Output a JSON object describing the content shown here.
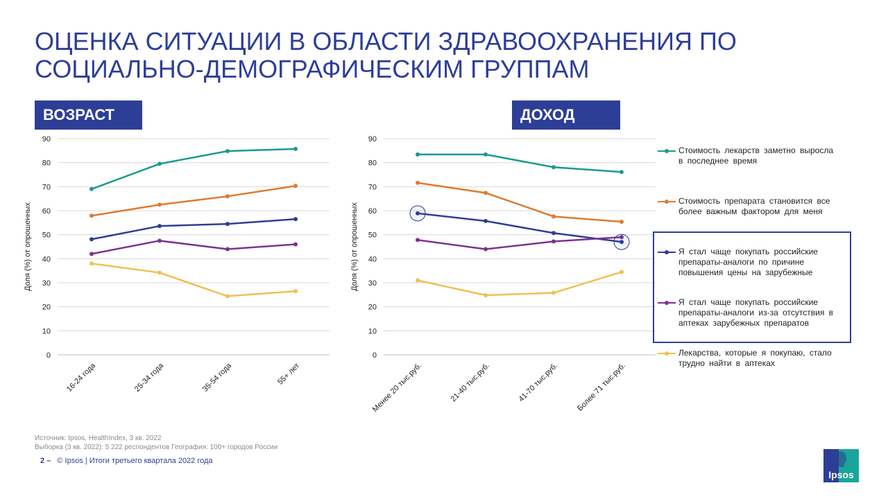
{
  "title": {
    "line1": "ОЦЕНКА СИТУАЦИИ В ОБЛАСТИ ЗДРАВООХРАНЕНИЯ ПО",
    "line2": "СОЦИАЛЬНО-ДЕМОГРАФИЧЕСКИМ ГРУППАМ"
  },
  "colors": {
    "accent": "#2d3e97",
    "teal": "#1a9a92",
    "orange": "#e07a2e",
    "navy": "#2d3e97",
    "purple": "#7b3294",
    "yellow": "#f0c050"
  },
  "legend": [
    {
      "label": "Стоимость лекарств заметно выросла в последнее время",
      "color": "#1a9a92"
    },
    {
      "label": "Стоимость препарата становится все более важным фактором для меня",
      "color": "#e07a2e"
    },
    {
      "label": "Я стал чаще покупать российские препараты-аналоги по причине повышения цены на зарубежные",
      "color": "#2d3e97"
    },
    {
      "label": "Я стал чаще покупать российские препараты-аналоги из-за отсутствия в аптеках зарубежных препаратов",
      "color": "#7b3294"
    },
    {
      "label": "Лекарства, которые я покупаю, стало трудно найти в аптеках",
      "color": "#f0c050"
    }
  ],
  "chart_data": [
    {
      "type": "line",
      "title": "ВОЗРАСТ",
      "xlabel": "",
      "ylabel": "Доля (%) от опрошенных",
      "ylim": [
        0,
        90
      ],
      "yticks": [
        0,
        10,
        20,
        30,
        40,
        50,
        60,
        70,
        80,
        90
      ],
      "grid": true,
      "categories": [
        "16-24 года",
        "25-34 года",
        "35-54 года",
        "55+ лет"
      ],
      "series": [
        {
          "color": "#1a9a92",
          "values": [
            69,
            79.5,
            84.8,
            85.7
          ]
        },
        {
          "color": "#e07a2e",
          "values": [
            57.9,
            62.5,
            66,
            70.3
          ]
        },
        {
          "color": "#2d3e97",
          "values": [
            48.1,
            53.6,
            54.5,
            56.5
          ]
        },
        {
          "color": "#7b3294",
          "values": [
            42,
            47.5,
            44,
            46
          ]
        },
        {
          "color": "#f0c050",
          "values": [
            38,
            34.2,
            24.4,
            26.5
          ]
        }
      ]
    },
    {
      "type": "line",
      "title": "ДОХОД",
      "xlabel": "",
      "ylabel": "Доля (%) от опрошенных",
      "ylim": [
        0,
        90
      ],
      "yticks": [
        0,
        10,
        20,
        30,
        40,
        50,
        60,
        70,
        80,
        90
      ],
      "grid": true,
      "legend_position": "right",
      "categories": [
        "Менее 20 тыс.руб.",
        "21-40 тыс.руб.",
        "41-70 тыс.руб.",
        "Более 71 тыс.руб."
      ],
      "highlighted_points": [
        {
          "series": 2,
          "index": 0
        },
        {
          "series": 2,
          "index": 3
        }
      ],
      "series": [
        {
          "color": "#1a9a92",
          "values": [
            83.4,
            83.4,
            78.1,
            76.1
          ]
        },
        {
          "color": "#e07a2e",
          "values": [
            71.6,
            67.4,
            57.6,
            55.4
          ]
        },
        {
          "color": "#2d3e97",
          "values": [
            58.9,
            55.7,
            50.7,
            47
          ]
        },
        {
          "color": "#7b3294",
          "values": [
            47.8,
            44,
            47.2,
            49
          ]
        },
        {
          "color": "#f0c050",
          "values": [
            31,
            24.8,
            25.8,
            34.5
          ]
        }
      ]
    }
  ],
  "source": {
    "line1": "Источник: Ipsos, HealthIndex, 3 кв. 2022",
    "line2": "Выборка (3 кв. 2022): 5 222 респондентов География: 100+ городов России"
  },
  "footer": {
    "page": "2 –",
    "text": "© Ipsos | Итоги третьего квартала 2022 года"
  },
  "logo": {
    "text": "Ipsos"
  }
}
